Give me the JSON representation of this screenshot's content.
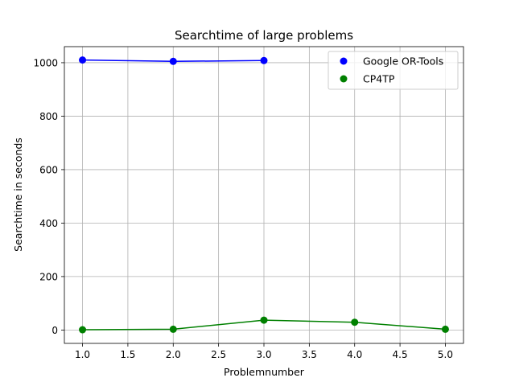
{
  "chart_data": {
    "type": "line",
    "title": "Searchtime of large problems",
    "xlabel": "Problemnumber",
    "ylabel": "Searchtime in seconds",
    "xlim": [
      0.8,
      5.2
    ],
    "ylim": [
      -50,
      1060
    ],
    "xticks": [
      1.0,
      1.5,
      2.0,
      2.5,
      3.0,
      3.5,
      4.0,
      4.5,
      5.0
    ],
    "xtick_labels": [
      "1.0",
      "1.5",
      "2.0",
      "2.5",
      "3.0",
      "3.5",
      "4.0",
      "4.5",
      "5.0"
    ],
    "yticks": [
      0,
      200,
      400,
      600,
      800,
      1000
    ],
    "ytick_labels": [
      "0",
      "200",
      "400",
      "600",
      "800",
      "1000"
    ],
    "grid": true,
    "legend_position": "top-right",
    "series": [
      {
        "name": "Google OR-Tools",
        "color": "#0000ff",
        "x": [
          1,
          2,
          3
        ],
        "y": [
          1010,
          1005,
          1008
        ]
      },
      {
        "name": "CP4TP",
        "color": "#008000",
        "x": [
          1,
          2,
          3,
          4,
          5
        ],
        "y": [
          1,
          3,
          37,
          29,
          3
        ]
      }
    ]
  }
}
